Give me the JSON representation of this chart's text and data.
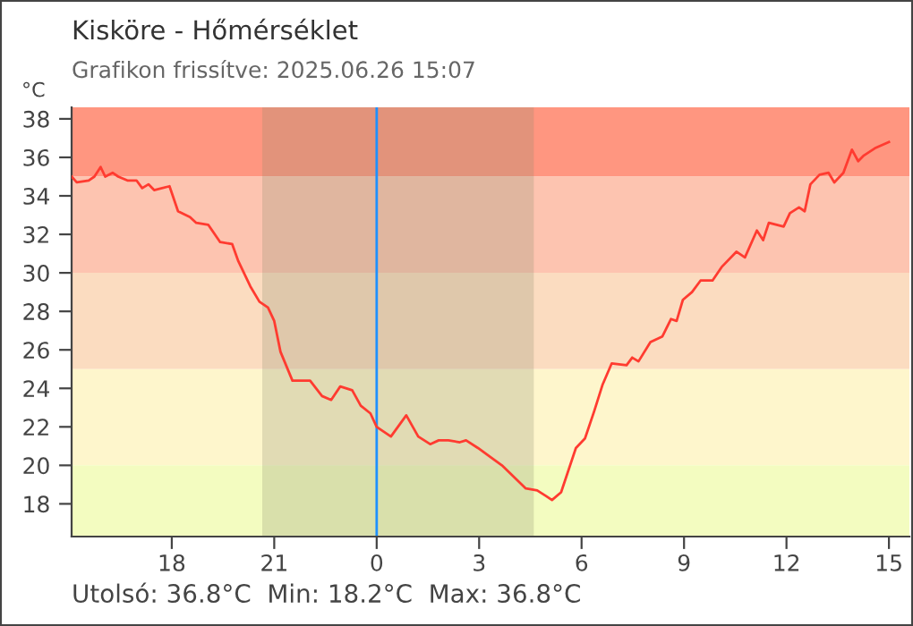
{
  "chart_data": {
    "type": "line",
    "title": "Kisköre - Hőmérséklet",
    "subtitle": "Grafikon frissítve: 2025.06.26 15:07",
    "ylabel": "°C",
    "annotations": [
      "Utolsó: 36.8°C  Min: 18.2°C  Max: 36.8°C"
    ],
    "series": [
      {
        "color": "#ff3b30",
        "x": [
          "2025-06-25T15:04",
          "2025-06-25T15:13",
          "2025-06-25T15:34",
          "2025-06-25T15:44",
          "2025-06-25T15:55",
          "2025-06-25T16:03",
          "2025-06-25T16:16",
          "2025-06-25T16:26",
          "2025-06-25T16:42",
          "2025-06-25T16:58",
          "2025-06-25T17:08",
          "2025-06-25T17:19",
          "2025-06-25T17:29",
          "2025-06-25T17:56",
          "2025-06-25T18:11",
          "2025-06-25T18:32",
          "2025-06-25T18:43",
          "2025-06-25T19:04",
          "2025-06-25T19:25",
          "2025-06-25T19:46",
          "2025-06-25T19:57",
          "2025-06-25T20:18",
          "2025-06-25T20:34",
          "2025-06-25T20:49",
          "2025-06-25T21:00",
          "2025-06-25T21:11",
          "2025-06-25T21:32",
          "2025-06-25T22:03",
          "2025-06-25T22:24",
          "2025-06-25T22:40",
          "2025-06-25T22:56",
          "2025-06-25T23:17",
          "2025-06-25T23:32",
          "2025-06-25T23:49",
          "2025-06-26T00:00",
          "2025-06-26T00:25",
          "2025-06-26T00:52",
          "2025-06-26T01:13",
          "2025-06-26T01:34",
          "2025-06-26T01:49",
          "2025-06-26T02:06",
          "2025-06-26T02:26",
          "2025-06-26T02:37",
          "2025-06-26T02:58",
          "2025-06-26T03:40",
          "2025-06-26T04:22",
          "2025-06-26T04:42",
          "2025-06-26T04:58",
          "2025-06-26T05:08",
          "2025-06-26T05:24",
          "2025-06-26T05:50",
          "2025-06-26T06:06",
          "2025-06-26T06:22",
          "2025-06-26T06:37",
          "2025-06-26T06:53",
          "2025-06-26T07:19",
          "2025-06-26T07:29",
          "2025-06-26T07:40",
          "2025-06-26T08:01",
          "2025-06-26T08:22",
          "2025-06-26T08:37",
          "2025-06-26T08:47",
          "2025-06-26T08:58",
          "2025-06-26T09:14",
          "2025-06-26T09:29",
          "2025-06-26T09:50",
          "2025-06-26T10:06",
          "2025-06-26T10:32",
          "2025-06-26T10:47",
          "2025-06-26T11:08",
          "2025-06-26T11:19",
          "2025-06-26T11:29",
          "2025-06-26T11:55",
          "2025-06-26T12:06",
          "2025-06-26T12:22",
          "2025-06-26T12:32",
          "2025-06-26T12:42",
          "2025-06-26T12:58",
          "2025-06-26T13:14",
          "2025-06-26T13:24",
          "2025-06-26T13:40",
          "2025-06-26T13:55",
          "2025-06-26T14:06",
          "2025-06-26T14:16",
          "2025-06-26T14:37",
          "2025-06-26T15:00"
        ],
        "values": [
          35.0,
          34.7,
          34.8,
          35.0,
          35.5,
          35.0,
          35.2,
          35.0,
          34.8,
          34.8,
          34.4,
          34.6,
          34.3,
          34.5,
          33.2,
          32.9,
          32.6,
          32.5,
          31.6,
          31.5,
          30.6,
          29.3,
          28.5,
          28.2,
          27.5,
          25.9,
          24.4,
          24.4,
          23.6,
          23.4,
          24.1,
          23.9,
          23.1,
          22.7,
          22.0,
          21.5,
          22.6,
          21.5,
          21.1,
          21.3,
          21.3,
          21.2,
          21.3,
          20.9,
          20.0,
          18.8,
          18.7,
          18.4,
          18.2,
          18.6,
          20.9,
          21.4,
          22.8,
          24.2,
          25.3,
          25.2,
          25.6,
          25.4,
          26.4,
          26.7,
          27.6,
          27.5,
          28.6,
          29.0,
          29.6,
          29.6,
          30.3,
          31.1,
          30.8,
          32.2,
          31.7,
          32.6,
          32.4,
          33.1,
          33.4,
          33.2,
          34.6,
          35.1,
          35.2,
          34.7,
          35.2,
          36.4,
          35.8,
          36.1,
          36.5,
          36.8
        ]
      }
    ],
    "xlim": [
      "2025-06-25T15:04",
      "2025-06-26T15:36"
    ],
    "xticks": [
      {
        "value": "2025-06-25T18:00",
        "label": "18"
      },
      {
        "value": "2025-06-25T21:00",
        "label": "21"
      },
      {
        "value": "2025-06-26T00:00",
        "label": "0"
      },
      {
        "value": "2025-06-26T03:00",
        "label": "3"
      },
      {
        "value": "2025-06-26T06:00",
        "label": "6"
      },
      {
        "value": "2025-06-26T09:00",
        "label": "9"
      },
      {
        "value": "2025-06-26T12:00",
        "label": "12"
      },
      {
        "value": "2025-06-26T15:00",
        "label": "15"
      }
    ],
    "ylim": [
      16.3,
      38.6
    ],
    "yticks": [
      18,
      20,
      22,
      24,
      26,
      28,
      30,
      32,
      34,
      36,
      38
    ],
    "bands": [
      {
        "axis": "y",
        "from": 35,
        "to": 38.6,
        "color": "#ff9680"
      },
      {
        "axis": "y",
        "from": 30,
        "to": 35,
        "color": "#fdc4b0"
      },
      {
        "axis": "y",
        "from": 25,
        "to": 30,
        "color": "#fbdcc0"
      },
      {
        "axis": "y",
        "from": 20,
        "to": 25,
        "color": "#fef6cc"
      },
      {
        "axis": "y",
        "from": 16.3,
        "to": 20,
        "color": "#f3fcc0"
      },
      {
        "axis": "x",
        "from": "2025-06-25T20:39",
        "to": "2025-06-26T04:36",
        "color": "#8a8a6a"
      }
    ],
    "ref_lines": [
      {
        "axis": "x",
        "value": "2025-06-26T00:00",
        "color": "#1e90ff"
      }
    ],
    "grid": false,
    "legend": false
  }
}
